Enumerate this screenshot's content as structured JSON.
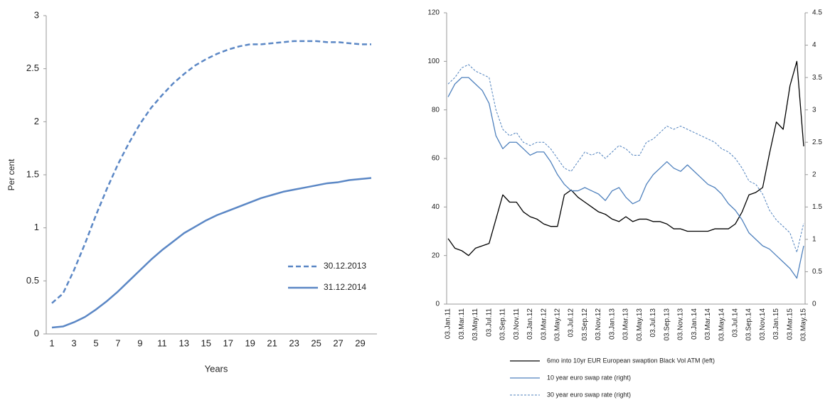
{
  "chart_data": [
    {
      "type": "line",
      "xlabel": "Years",
      "ylabel": "Per cent",
      "categories": [
        1,
        null,
        3,
        null,
        5,
        null,
        7,
        null,
        9,
        null,
        11,
        null,
        13,
        null,
        15,
        null,
        17,
        null,
        19,
        null,
        21,
        null,
        23,
        null,
        25,
        null,
        27,
        null,
        29,
        null
      ],
      "ylim": [
        0,
        3
      ],
      "yticks": [
        0,
        0.5,
        1,
        1.5,
        2,
        2.5,
        3
      ],
      "legend": "right",
      "series": [
        {
          "name": "30.12.2013",
          "color": "#5b87c5",
          "style": "dashed",
          "values": [
            0.29,
            0.38,
            0.6,
            0.85,
            1.12,
            1.37,
            1.6,
            1.8,
            1.98,
            2.13,
            2.25,
            2.36,
            2.45,
            2.53,
            2.59,
            2.64,
            2.68,
            2.71,
            2.73,
            2.73,
            2.74,
            2.75,
            2.76,
            2.76,
            2.76,
            2.75,
            2.75,
            2.74,
            2.73,
            2.73
          ]
        },
        {
          "name": "31.12.2014",
          "color": "#5b87c5",
          "style": "solid",
          "values": [
            0.06,
            0.07,
            0.11,
            0.16,
            0.23,
            0.31,
            0.4,
            0.5,
            0.6,
            0.7,
            0.79,
            0.87,
            0.95,
            1.01,
            1.07,
            1.12,
            1.16,
            1.2,
            1.24,
            1.28,
            1.31,
            1.34,
            1.36,
            1.38,
            1.4,
            1.42,
            1.43,
            1.45,
            1.46,
            1.47
          ]
        }
      ]
    },
    {
      "type": "line",
      "categories": [
        "03.Jan.11",
        null,
        "03.Mar.11",
        null,
        "03.May.11",
        null,
        "03.Jul.11",
        null,
        "03.Sep.11",
        null,
        "03.Nov.11",
        null,
        "03.Jan.12",
        null,
        "03.Mar.12",
        null,
        "03.May.12",
        null,
        "03.Jul.12",
        null,
        "03.Sep.12",
        null,
        "03.Nov.12",
        null,
        "03.Jan.13",
        null,
        "03.Mar.13",
        null,
        "03.May.13",
        null,
        "03.Jul.13",
        null,
        "03.Sep.13",
        null,
        "03.Nov.13",
        null,
        "03.Jan.14",
        null,
        "03.Mar.14",
        null,
        "03.May.14",
        null,
        "03.Jul.14",
        null,
        "03.Sep.14",
        null,
        "03.Nov.14",
        null,
        "03.Jan.15",
        null,
        "03.Mar.15",
        null,
        "03.May.15"
      ],
      "ylim": [
        0,
        120
      ],
      "yticks": [
        0,
        20,
        40,
        60,
        80,
        100,
        120
      ],
      "y2lim": [
        0,
        4.5
      ],
      "y2ticks": [
        0,
        0.5,
        1,
        1.5,
        2,
        2.5,
        3,
        3.5,
        4,
        4.5
      ],
      "legend": "bottom",
      "series": [
        {
          "name": "6mo into 10yr EUR European swaption Black Vol ATM (left)",
          "color": "#000000",
          "style": "solid",
          "values": [
            27,
            23,
            22,
            20,
            23,
            24,
            25,
            35,
            45,
            42,
            42,
            38,
            36,
            35,
            33,
            32,
            32,
            45,
            47,
            44,
            42,
            40,
            38,
            37,
            35,
            34,
            36,
            34,
            35,
            35,
            34,
            34,
            33,
            31,
            31,
            30,
            30,
            30,
            30,
            31,
            31,
            31,
            33,
            38,
            45,
            46,
            48,
            62,
            75,
            72,
            90,
            100,
            65
          ]
        },
        {
          "name": "10 year euro swap rate (right)",
          "color": "#4f81bd",
          "style": "solid",
          "axis": "y2",
          "values": [
            3.2,
            3.4,
            3.5,
            3.5,
            3.4,
            3.3,
            3.1,
            2.6,
            2.4,
            2.5,
            2.5,
            2.4,
            2.3,
            2.35,
            2.35,
            2.2,
            2.0,
            1.85,
            1.75,
            1.75,
            1.8,
            1.75,
            1.7,
            1.6,
            1.75,
            1.8,
            1.65,
            1.55,
            1.6,
            1.85,
            2.0,
            2.1,
            2.2,
            2.1,
            2.05,
            2.15,
            2.05,
            1.95,
            1.85,
            1.8,
            1.7,
            1.55,
            1.45,
            1.3,
            1.1,
            1.0,
            0.9,
            0.85,
            0.75,
            0.65,
            0.55,
            0.4,
            0.9
          ]
        },
        {
          "name": "30 year euro swap rate (right)",
          "color": "#4f81bd",
          "style": "dashed-thin",
          "axis": "y2",
          "values": [
            3.4,
            3.5,
            3.65,
            3.7,
            3.6,
            3.55,
            3.5,
            3.0,
            2.7,
            2.6,
            2.65,
            2.5,
            2.45,
            2.5,
            2.5,
            2.4,
            2.25,
            2.1,
            2.05,
            2.2,
            2.35,
            2.3,
            2.35,
            2.25,
            2.35,
            2.45,
            2.4,
            2.3,
            2.3,
            2.5,
            2.55,
            2.65,
            2.75,
            2.7,
            2.75,
            2.7,
            2.65,
            2.6,
            2.55,
            2.5,
            2.4,
            2.35,
            2.25,
            2.1,
            1.9,
            1.85,
            1.7,
            1.45,
            1.3,
            1.2,
            1.1,
            0.8,
            1.25
          ]
        }
      ]
    }
  ]
}
